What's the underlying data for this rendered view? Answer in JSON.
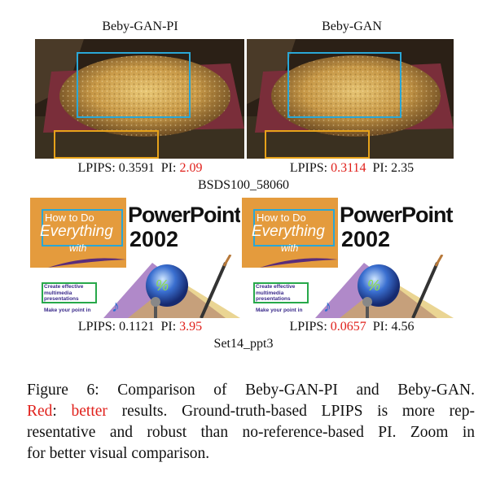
{
  "figure": {
    "columns": [
      {
        "title": "Beby-GAN-PI"
      },
      {
        "title": "Beby-GAN"
      }
    ],
    "rows": [
      {
        "set_label": "BSDS100_58060",
        "metrics": [
          {
            "lpips_prefix": "LPIPS: ",
            "lpips": "0.3591",
            "pi_prefix": "PI: ",
            "pi": "2.09",
            "lpips_better": false,
            "pi_better": true
          },
          {
            "lpips_prefix": "LPIPS: ",
            "lpips": "0.3114",
            "pi_prefix": "PI: ",
            "pi": "2.35",
            "lpips_better": true,
            "pi_better": false
          }
        ]
      },
      {
        "set_label": "Set14_ppt3",
        "book_title": "PowerPoint",
        "book_version": "2002",
        "book_badge": "How to Do Everything with",
        "book_howto": "How to Do",
        "book_everything": "Everything",
        "book_with": "with",
        "book_bullet1": "Create effective multimedia presentations",
        "book_bullet2": "Make your point in",
        "metrics": [
          {
            "lpips_prefix": "LPIPS: ",
            "lpips": "0.1121",
            "pi_prefix": "PI: ",
            "pi": "3.95",
            "lpips_better": false,
            "pi_better": true
          },
          {
            "lpips_prefix": "LPIPS: ",
            "lpips": "0.0657",
            "pi_prefix": "PI: ",
            "pi": "4.56",
            "lpips_better": true,
            "pi_better": false
          }
        ]
      }
    ],
    "colors": {
      "better": "#e0201b",
      "box_blue": "#2aa7d6",
      "box_orange": "#e6a21a",
      "box_green": "#27a84a"
    }
  },
  "caption": {
    "line1": "Figure 6:  Comparison of Beby-GAN-PI and Beby-GAN.",
    "line2_red1": "Red",
    "line2_colon": ": ",
    "line2_red2": "better",
    "line2_rest": " results.  Ground-truth-based LPIPS is more rep-",
    "line3": "resentative and robust than no-reference-based PI. Zoom in",
    "line4": "for better visual comparison."
  }
}
